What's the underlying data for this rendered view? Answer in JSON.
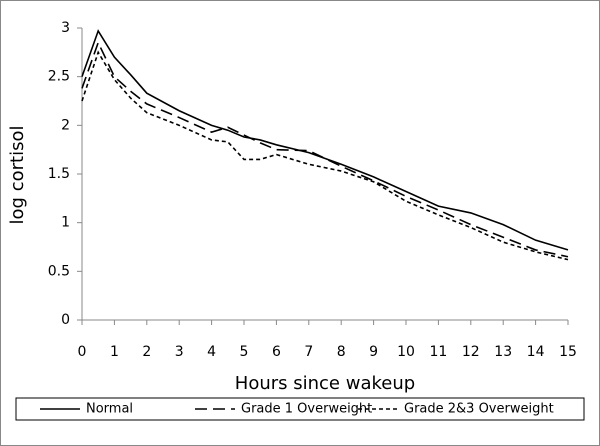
{
  "chart_data": {
    "type": "line",
    "x_label": "Hours since wakeup",
    "y_label": "log cortisol",
    "x": [
      0,
      0.5,
      1,
      1.5,
      2,
      3,
      4,
      4.5,
      5,
      5.5,
      6,
      7,
      8,
      9,
      10,
      11,
      12,
      13,
      14,
      15
    ],
    "series": [
      {
        "name": "Normal",
        "color": "#000000",
        "dash": "solid",
        "values": [
          2.5,
          2.97,
          2.7,
          2.52,
          2.33,
          2.15,
          2.0,
          1.95,
          1.88,
          1.85,
          1.8,
          1.72,
          1.6,
          1.47,
          1.32,
          1.17,
          1.1,
          0.98,
          0.82,
          0.72
        ]
      },
      {
        "name": "Grade 1 Overweight",
        "color": "#000000",
        "dash": "long",
        "values": [
          2.38,
          2.85,
          2.5,
          2.35,
          2.22,
          2.08,
          1.93,
          1.98,
          1.9,
          1.82,
          1.75,
          1.74,
          1.58,
          1.43,
          1.27,
          1.13,
          0.98,
          0.85,
          0.72,
          0.65
        ]
      },
      {
        "name": "Grade 2&3 Overweight",
        "color": "#000000",
        "dash": "short",
        "values": [
          2.25,
          2.75,
          2.47,
          2.28,
          2.13,
          2.0,
          1.85,
          1.83,
          1.65,
          1.65,
          1.7,
          1.6,
          1.53,
          1.42,
          1.22,
          1.08,
          0.95,
          0.8,
          0.7,
          0.62
        ]
      }
    ],
    "xlim": [
      0,
      15
    ],
    "xticks": [
      0,
      1,
      2,
      3,
      4,
      5,
      6,
      7,
      8,
      9,
      10,
      11,
      12,
      13,
      14,
      15
    ],
    "ylim": [
      0,
      3
    ],
    "yticks": [
      0,
      0.5,
      1,
      1.5,
      2,
      2.5,
      3
    ],
    "grid": false,
    "legend": "bottom"
  }
}
